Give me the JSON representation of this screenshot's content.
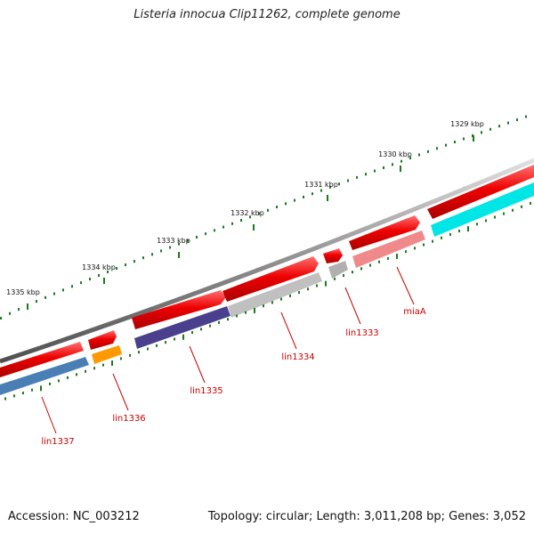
{
  "title": "Listeria innocua Clip11262, complete genome",
  "footer": {
    "accession": "Accession: NC_003212",
    "topology": "Topology: circular; Length: 3,011,208 bp; Genes: 3,052"
  },
  "scale": {
    "ticks": [
      {
        "label": "1329 kbp"
      },
      {
        "label": "1330 kbp"
      },
      {
        "label": "1331 kbp"
      },
      {
        "label": "1332 kbp"
      },
      {
        "label": "1333 kbp"
      },
      {
        "label": "1334 kbp"
      },
      {
        "label": "1335 kbp"
      }
    ]
  },
  "genes": [
    {
      "label": "miaA",
      "color": "#f08a8a"
    },
    {
      "label": "lin1333",
      "color": "#b0b0b0"
    },
    {
      "label": "lin1334",
      "color": "#c0c0c0"
    },
    {
      "label": "lin1335",
      "color": "#4a3f8c"
    },
    {
      "label": "lin1336",
      "color": "#ff9900"
    },
    {
      "label": "lin1337",
      "color": "#4a7fb5"
    },
    {
      "label": "",
      "color": "#00e5e5"
    }
  ],
  "colors": {
    "cds_strand": "#ee0000",
    "backbone": "#808080",
    "tick": "#1a7a1a",
    "gene_label": "#cc0000"
  }
}
